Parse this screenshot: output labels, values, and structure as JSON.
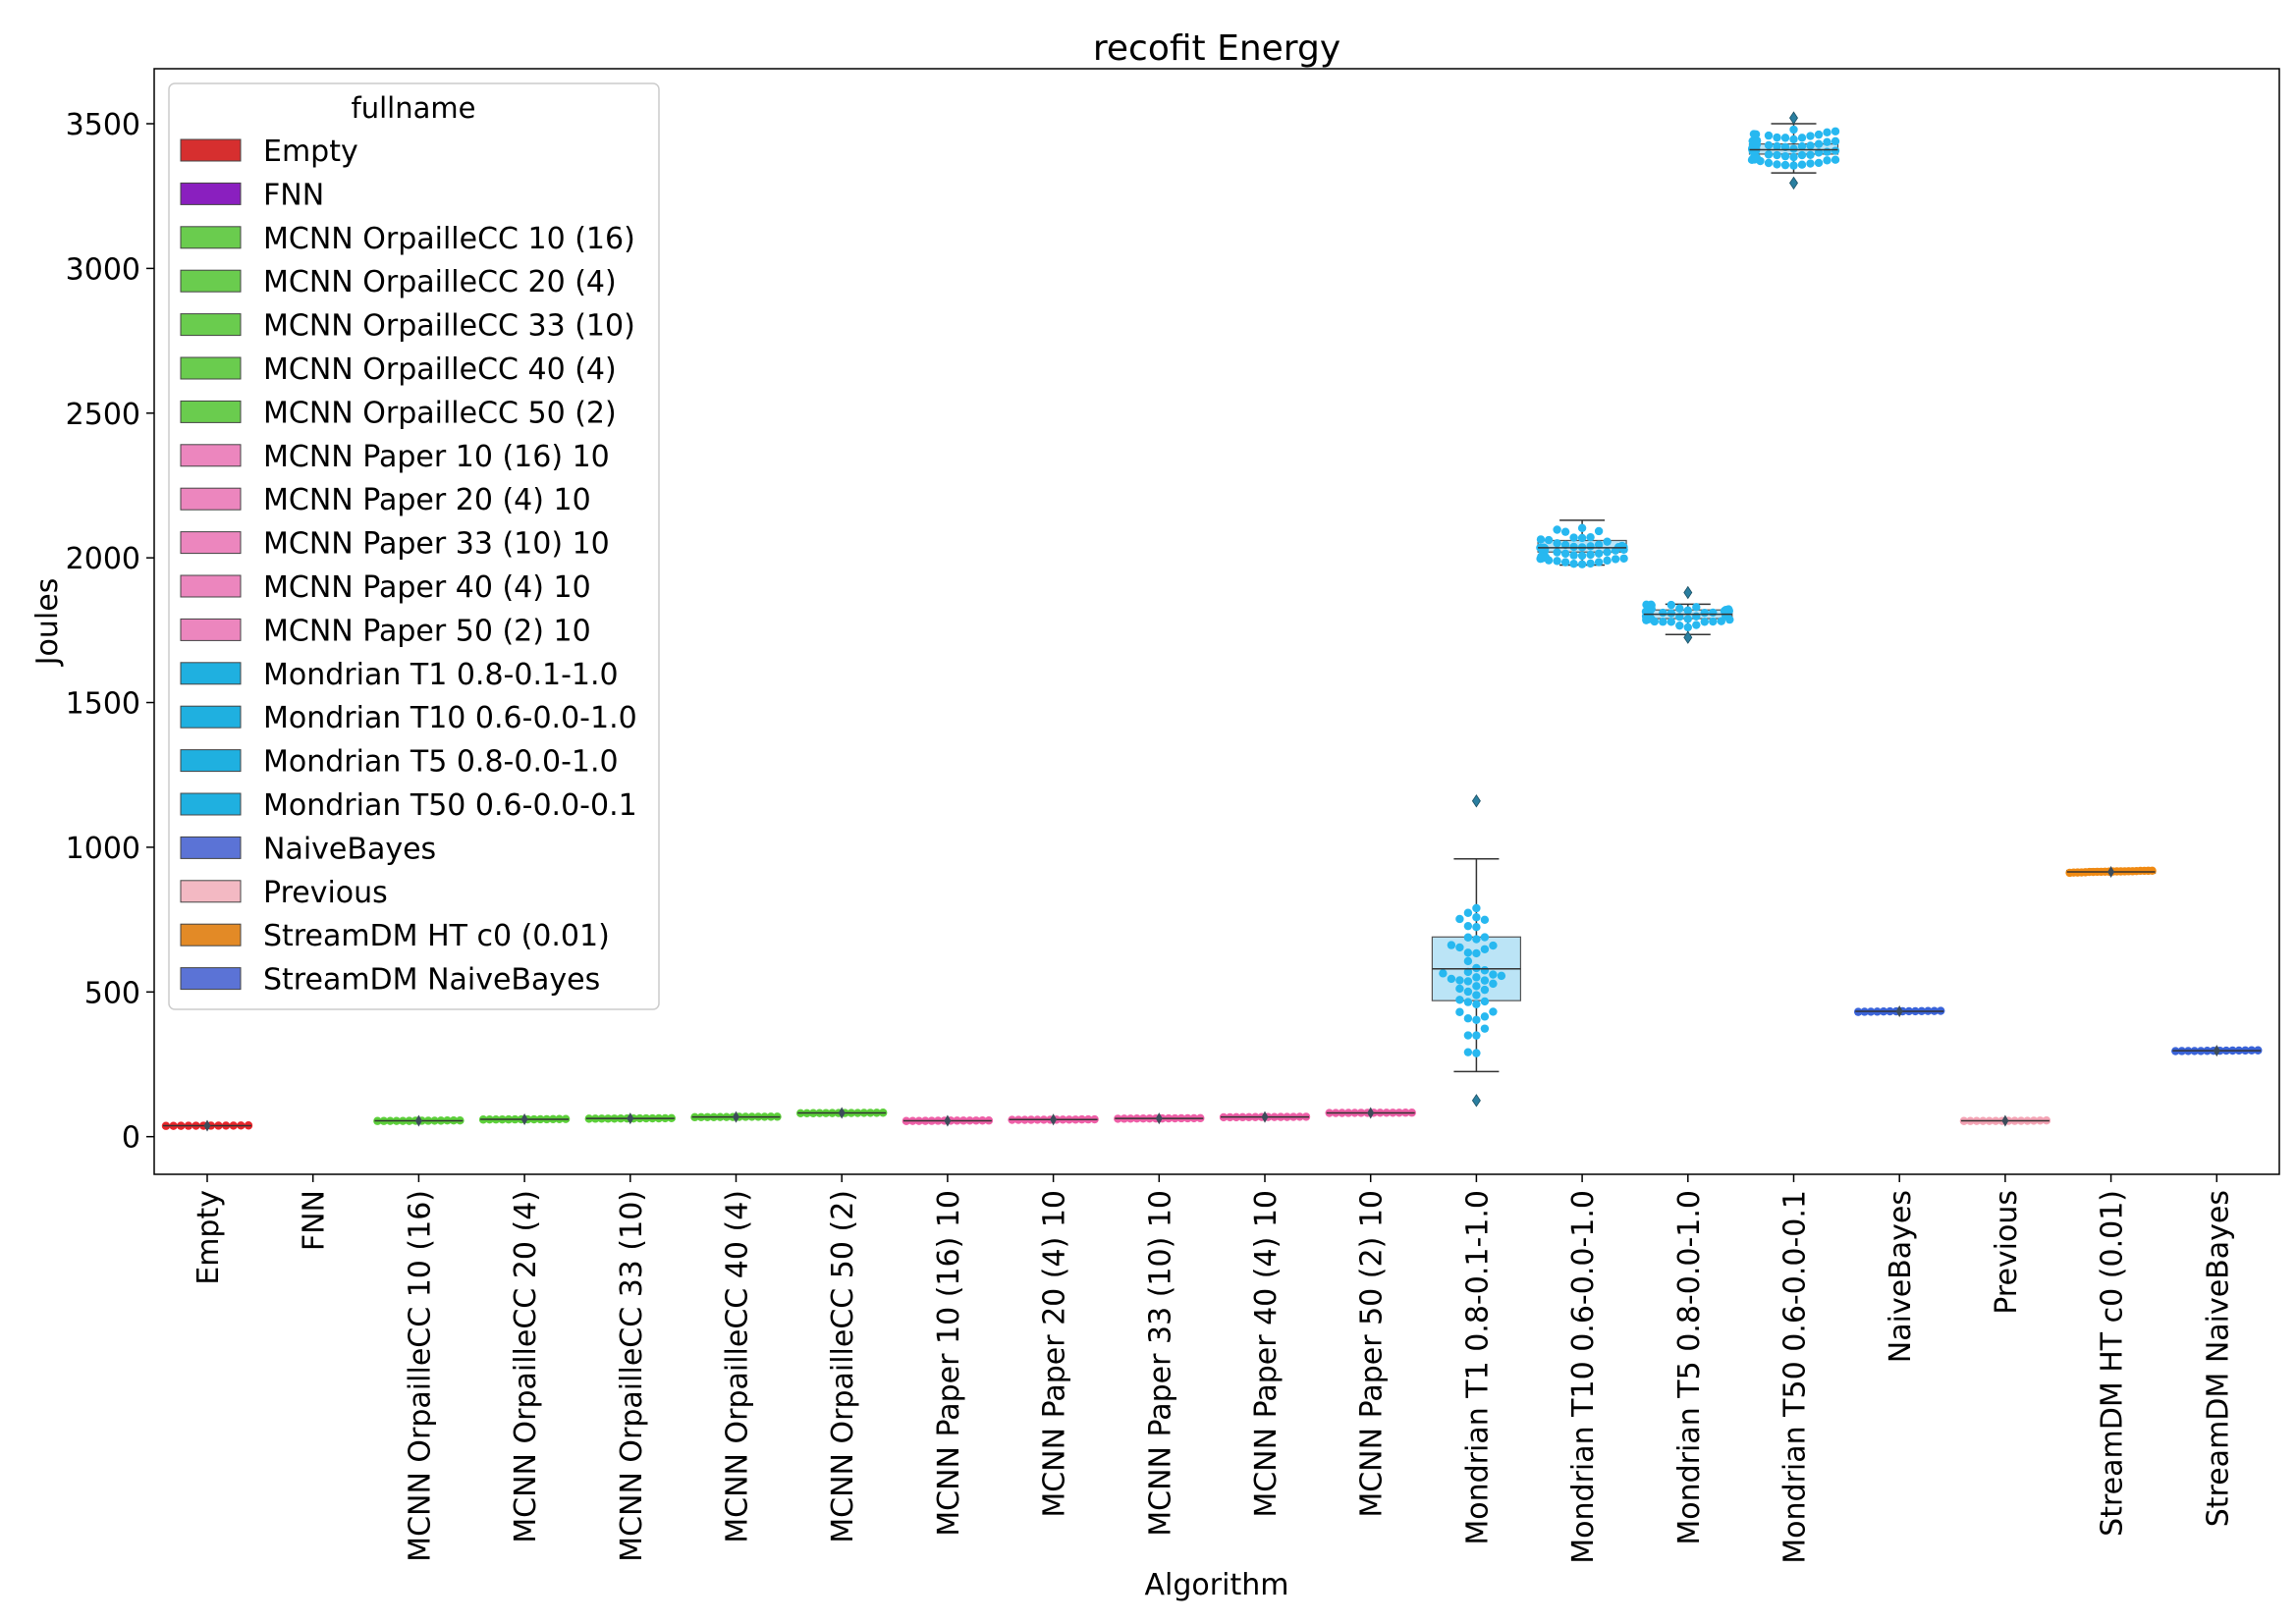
{
  "chart_data": {
    "type": "box",
    "title": "recofit Energy",
    "xlabel": "Algorithm",
    "ylabel": "Joules",
    "ylim": [
      -130,
      3690
    ],
    "yticks": [
      0,
      500,
      1000,
      1500,
      2000,
      2500,
      3000,
      3500
    ],
    "grid": false,
    "legend": {
      "title": "fullname",
      "placement": "upper-left"
    },
    "categories": [
      "Empty",
      "FNN",
      "MCNN OrpailleCC 10 (16)",
      "MCNN OrpailleCC 20 (4)",
      "MCNN OrpailleCC 33 (10)",
      "MCNN OrpailleCC 40 (4)",
      "MCNN OrpailleCC 50 (2)",
      "MCNN Paper 10 (16) 10",
      "MCNN Paper 20 (4) 10",
      "MCNN Paper 33 (10) 10",
      "MCNN Paper 40 (4) 10",
      "MCNN Paper 50 (2) 10",
      "Mondrian T1 0.8-0.1-1.0",
      "Mondrian T10 0.6-0.0-1.0",
      "Mondrian T5 0.8-0.0-1.0",
      "Mondrian T50 0.6-0.0-0.1",
      "NaiveBayes",
      "Previous",
      "StreamDM HT c0 (0.01)",
      "StreamDM NaiveBayes"
    ],
    "series": [
      {
        "name": "Empty",
        "color": "#d62f2f",
        "point_color": "#e8262b",
        "box_color": "#e03838",
        "min": 38,
        "q1": 38,
        "median": 38,
        "q3": 38,
        "max": 38,
        "outliers": [],
        "spread": 2,
        "points": 12
      },
      {
        "name": "FNN",
        "color": "#8a1fbf",
        "point_color": "#8a1fbf",
        "box_color": "#8a1fbf",
        "min": null,
        "q1": null,
        "median": null,
        "q3": null,
        "max": null,
        "outliers": [],
        "spread": 0,
        "points": 0
      },
      {
        "name": "MCNN OrpailleCC 10 (16)",
        "color": "#6acc4e",
        "point_color": "#5ccf3a",
        "box_color": "#5ccf3a",
        "min": 55,
        "q1": 55,
        "median": 55,
        "q3": 55,
        "max": 55,
        "outliers": [],
        "spread": 2,
        "points": 14
      },
      {
        "name": "MCNN OrpailleCC 20 (4)",
        "color": "#6acc4e",
        "point_color": "#5ccf3a",
        "box_color": "#5ccf3a",
        "min": 60,
        "q1": 60,
        "median": 60,
        "q3": 60,
        "max": 60,
        "outliers": [],
        "spread": 2,
        "points": 14
      },
      {
        "name": "MCNN OrpailleCC 33 (10)",
        "color": "#6acc4e",
        "point_color": "#5ccf3a",
        "box_color": "#5ccf3a",
        "min": 63,
        "q1": 63,
        "median": 63,
        "q3": 63,
        "max": 63,
        "outliers": [],
        "spread": 2,
        "points": 14
      },
      {
        "name": "MCNN OrpailleCC 40 (4)",
        "color": "#6acc4e",
        "point_color": "#5ccf3a",
        "box_color": "#5ccf3a",
        "min": 68,
        "q1": 68,
        "median": 68,
        "q3": 68,
        "max": 68,
        "outliers": [],
        "spread": 2,
        "points": 14
      },
      {
        "name": "MCNN OrpailleCC 50 (2)",
        "color": "#6acc4e",
        "point_color": "#5ccf3a",
        "box_color": "#5ccf3a",
        "min": 82,
        "q1": 82,
        "median": 82,
        "q3": 82,
        "max": 82,
        "outliers": [],
        "spread": 2,
        "points": 14
      },
      {
        "name": "MCNN Paper 10 (16) 10",
        "color": "#ec86be",
        "point_color": "#ee5fa7",
        "box_color": "#ee5fa7",
        "min": 55,
        "q1": 55,
        "median": 55,
        "q3": 55,
        "max": 55,
        "outliers": [],
        "spread": 2,
        "points": 14
      },
      {
        "name": "MCNN Paper 20 (4) 10",
        "color": "#ec86be",
        "point_color": "#ee5fa7",
        "box_color": "#ee5fa7",
        "min": 59,
        "q1": 59,
        "median": 59,
        "q3": 59,
        "max": 59,
        "outliers": [],
        "spread": 2,
        "points": 14
      },
      {
        "name": "MCNN Paper 33 (10) 10",
        "color": "#ec86be",
        "point_color": "#ee5fa7",
        "box_color": "#ee5fa7",
        "min": 63,
        "q1": 63,
        "median": 63,
        "q3": 63,
        "max": 63,
        "outliers": [],
        "spread": 2,
        "points": 14
      },
      {
        "name": "MCNN Paper 40 (4) 10",
        "color": "#ec86be",
        "point_color": "#ee5fa7",
        "box_color": "#ee5fa7",
        "min": 68,
        "q1": 68,
        "median": 68,
        "q3": 68,
        "max": 68,
        "outliers": [],
        "spread": 2,
        "points": 14
      },
      {
        "name": "MCNN Paper 50 (2) 10",
        "color": "#ec86be",
        "point_color": "#ee5fa7",
        "box_color": "#ee5fa7",
        "min": 82,
        "q1": 82,
        "median": 82,
        "q3": 82,
        "max": 82,
        "outliers": [],
        "spread": 2,
        "points": 14
      },
      {
        "name": "Mondrian T1 0.8-0.1-1.0",
        "color": "#1fb0e0",
        "point_color": "#27b8f0",
        "box_color": "#b7e3f5",
        "min": 225,
        "q1": 470,
        "median": 580,
        "q3": 690,
        "max": 960,
        "outliers": [
          125,
          1160
        ],
        "spread": 150,
        "points": 48
      },
      {
        "name": "Mondrian T10 0.6-0.0-1.0",
        "color": "#1fb0e0",
        "point_color": "#27b8f0",
        "box_color": "#b7e3f5",
        "min": 1975,
        "q1": 2020,
        "median": 2035,
        "q3": 2060,
        "max": 2130,
        "outliers": [],
        "spread": 35,
        "points": 60
      },
      {
        "name": "Mondrian T5 0.8-0.0-1.0",
        "color": "#1fb0e0",
        "point_color": "#27b8f0",
        "box_color": "#b7e3f5",
        "min": 1735,
        "q1": 1790,
        "median": 1805,
        "q3": 1820,
        "max": 1840,
        "outliers": [
          1725,
          1880
        ],
        "spread": 28,
        "points": 60
      },
      {
        "name": "Mondrian T50 0.6-0.0-0.1",
        "color": "#1fb0e0",
        "point_color": "#27b8f0",
        "box_color": "#b7e3f5",
        "min": 3330,
        "q1": 3395,
        "median": 3410,
        "q3": 3430,
        "max": 3500,
        "outliers": [
          3295,
          3520
        ],
        "spread": 40,
        "points": 60
      },
      {
        "name": "NaiveBayes",
        "color": "#5b73d6",
        "point_color": "#3a63d8",
        "box_color": "#3a63d8",
        "min": 433,
        "q1": 433,
        "median": 433,
        "q3": 433,
        "max": 433,
        "outliers": [],
        "spread": 4,
        "points": 14
      },
      {
        "name": "Previous",
        "color": "#f3b9c3",
        "point_color": "#f4a3b4",
        "box_color": "#f4a3b4",
        "min": 55,
        "q1": 55,
        "median": 55,
        "q3": 55,
        "max": 55,
        "outliers": [],
        "spread": 2,
        "points": 14
      },
      {
        "name": "StreamDM HT c0 (0.01)",
        "color": "#e38a26",
        "point_color": "#f08a12",
        "box_color": "#f08a12",
        "min": 910,
        "q1": 910,
        "median": 915,
        "q3": 920,
        "max": 925,
        "outliers": [],
        "spread": 8,
        "points": 22
      },
      {
        "name": "StreamDM NaiveBayes",
        "color": "#5b73d6",
        "point_color": "#3a63d8",
        "box_color": "#3a63d8",
        "min": 297,
        "q1": 297,
        "median": 297,
        "q3": 297,
        "max": 297,
        "outliers": [],
        "spread": 3,
        "points": 14
      }
    ]
  }
}
